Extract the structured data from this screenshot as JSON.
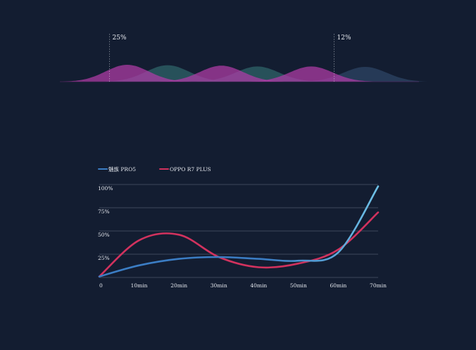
{
  "colors": {
    "background": "#131d31",
    "grid": "#4b5568",
    "text": "#e6e9ef",
    "meizu": "#3b7dc4",
    "meizu_light": "#6ec0e6",
    "oppo": "#d2325e",
    "wave_pink": "#b23ba8",
    "wave_teal": "#2b5a62",
    "wave_blue": "#2a3f5e"
  },
  "chart_data": [
    {
      "type": "area",
      "title": "",
      "annotations": [
        {
          "label": "25%",
          "x": 1
        },
        {
          "label": "12%",
          "x": 7
        }
      ],
      "series": [
        {
          "color": "wave_pink",
          "peaks": [
            {
              "x": 1.5,
              "y": 0.8
            },
            {
              "x": 3.6,
              "y": 0.76
            },
            {
              "x": 5.6,
              "y": 0.72
            }
          ]
        },
        {
          "color": "wave_teal",
          "peaks": [
            {
              "x": 2.4,
              "y": 0.78
            },
            {
              "x": 4.4,
              "y": 0.72
            }
          ]
        },
        {
          "color": "wave_blue",
          "peaks": [
            {
              "x": 6.8,
              "y": 0.7
            }
          ]
        }
      ]
    },
    {
      "type": "line",
      "title": "",
      "legend_position": "top-left",
      "x": [
        0,
        10,
        20,
        30,
        40,
        50,
        60,
        70
      ],
      "xtick_labels": [
        "0",
        "10min",
        "20min",
        "30min",
        "40min",
        "50min",
        "60min",
        "70min"
      ],
      "yticks": [
        0,
        25,
        50,
        75,
        100
      ],
      "ytick_labels": [
        "",
        "25%",
        "50%",
        "75%",
        "100%"
      ],
      "ylim": [
        0,
        100
      ],
      "xlim": [
        0,
        70
      ],
      "grid": true,
      "series": [
        {
          "name": "魅族 PRO5",
          "color": "meizu",
          "values": [
            1,
            13,
            20,
            22,
            20,
            18,
            27,
            98
          ]
        },
        {
          "name": "OPPO R7 PLUS",
          "color": "oppo",
          "values": [
            1,
            40,
            46,
            22,
            11,
            15,
            30,
            70
          ]
        }
      ]
    }
  ]
}
